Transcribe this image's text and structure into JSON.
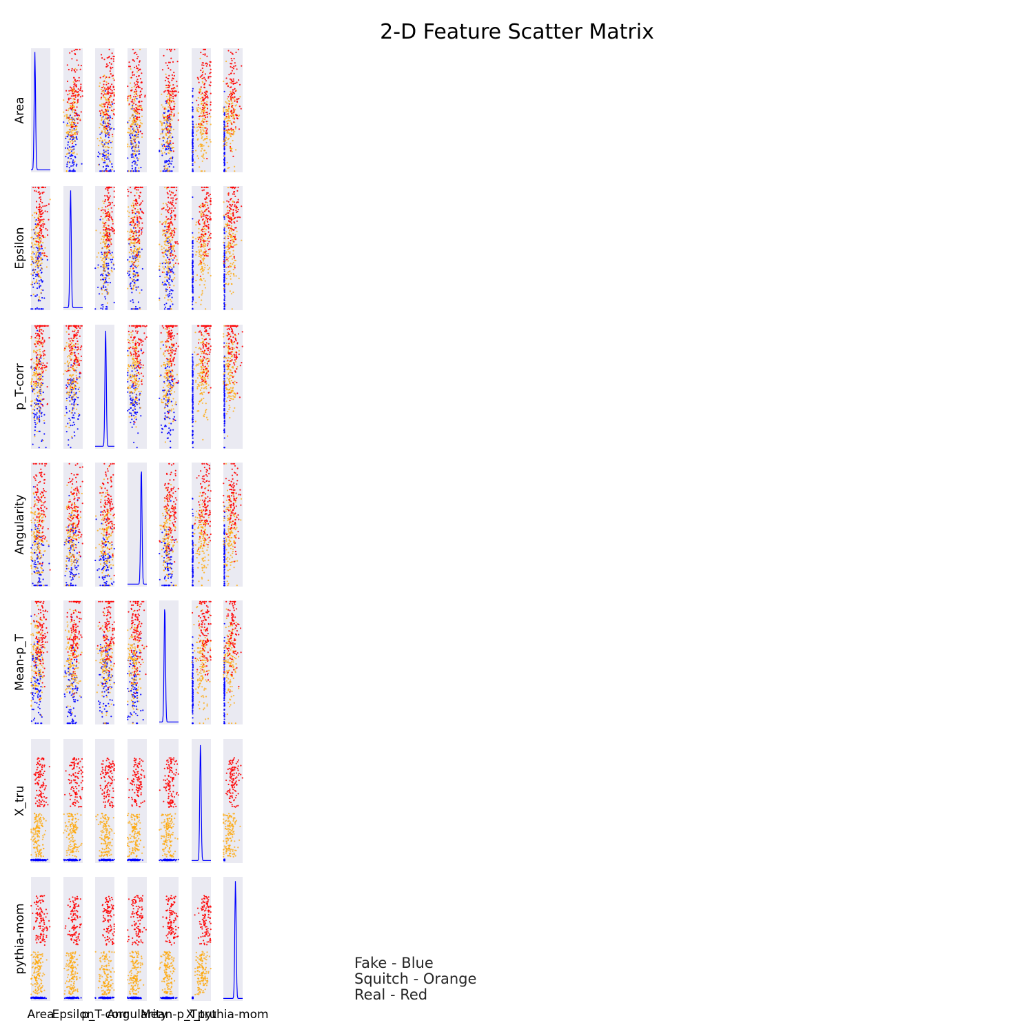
{
  "chart_data": {
    "type": "scatter",
    "title": "2-D Feature Scatter Matrix",
    "features": [
      "Area",
      "Epsilon",
      "p_T-corr",
      "Angularity",
      "Mean-p_T",
      "X_tru",
      "pythia-mom"
    ],
    "diagonal": "histogram (Fake)",
    "grid": false,
    "background_color": "#eaeaf2",
    "series": [
      {
        "name": "Fake",
        "color": "#0000ff"
      },
      {
        "name": "Squitch",
        "color": "#ffa500"
      },
      {
        "name": "Real",
        "color": "#ff0000"
      }
    ],
    "legend_text": [
      "Fake - Blue",
      "Squitch - Orange",
      "Real - Red"
    ],
    "legend_position": "bottom-center"
  }
}
